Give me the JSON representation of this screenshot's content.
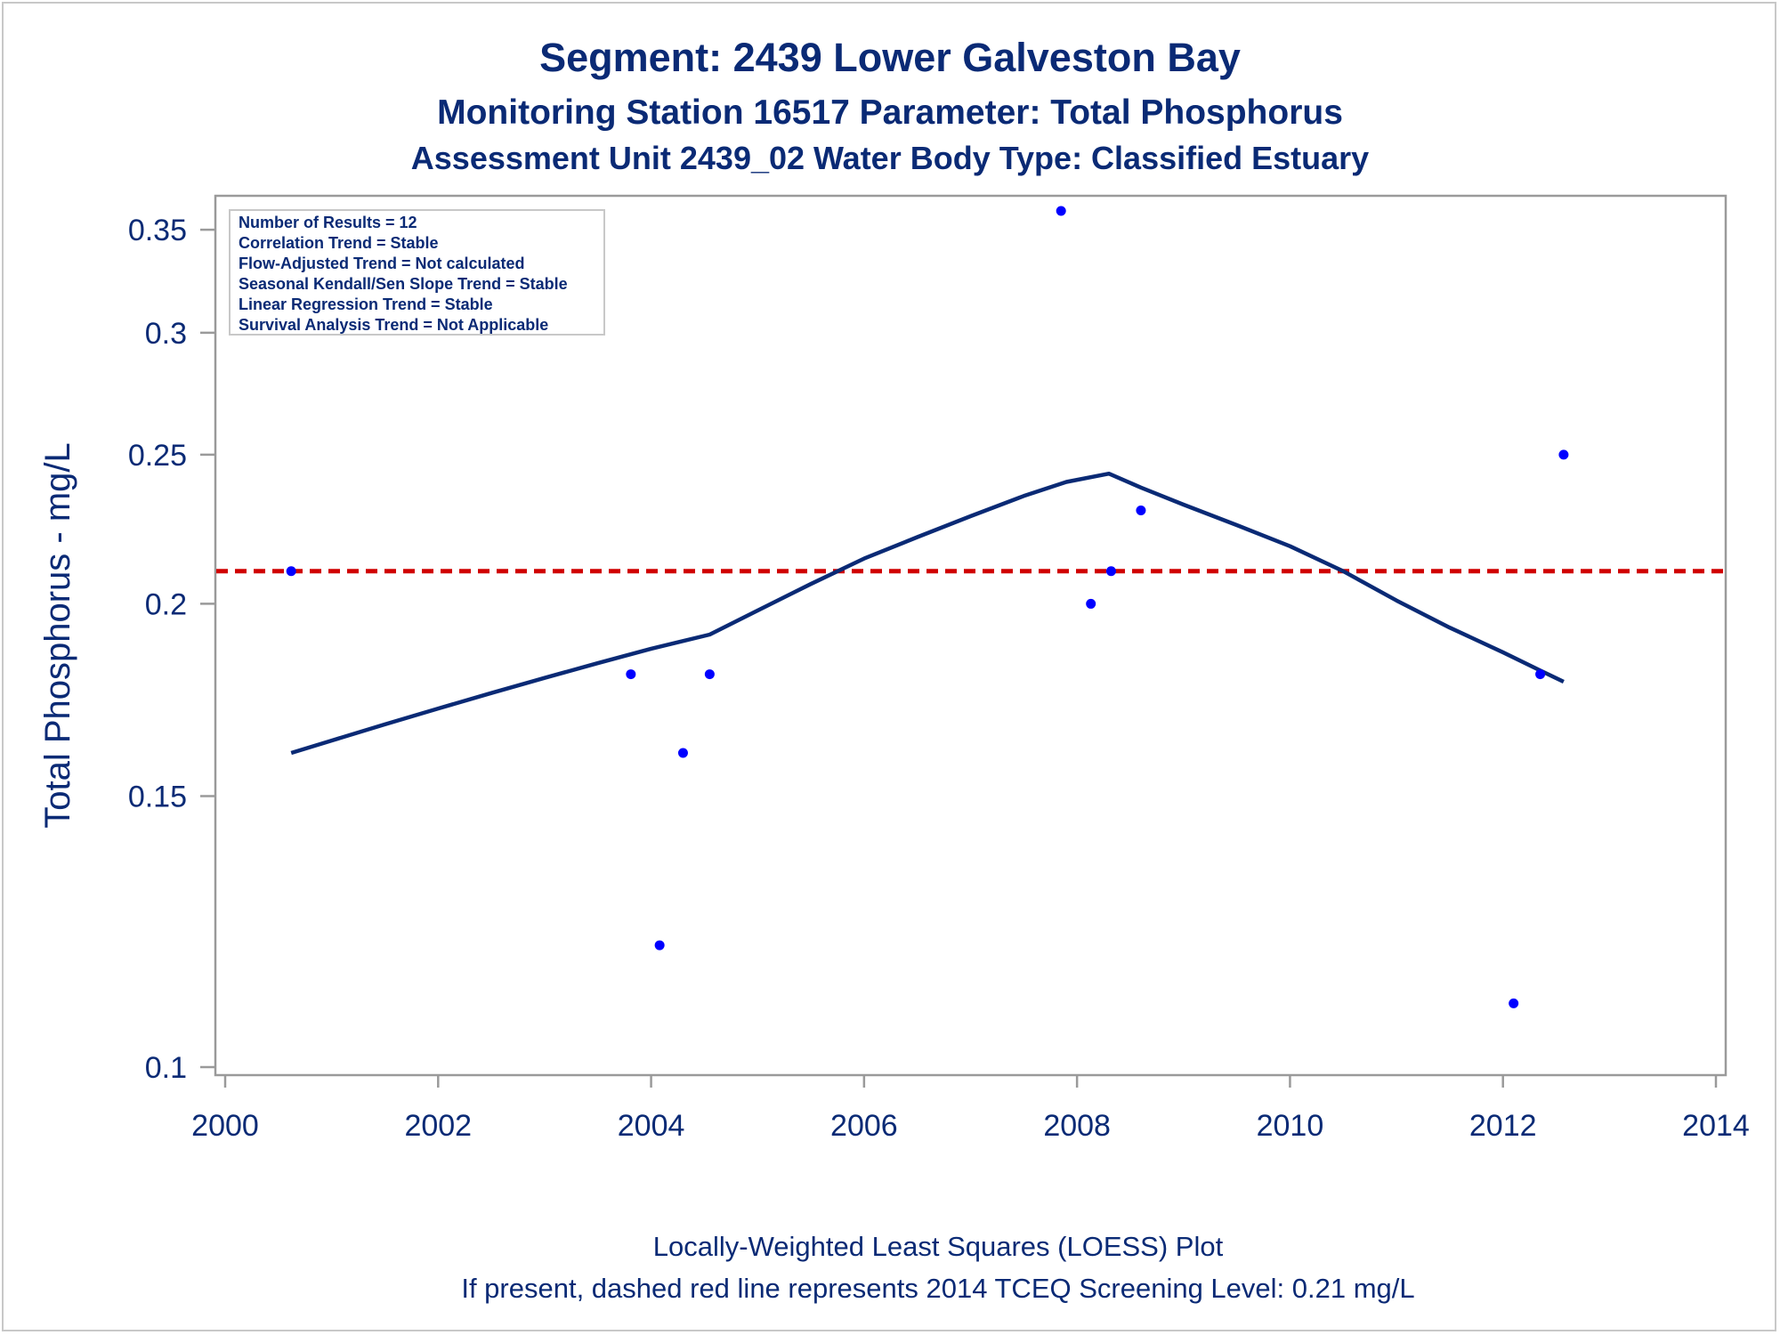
{
  "titles": {
    "line1": "Segment: 2439  Lower Galveston Bay",
    "line2": "Monitoring Station 16517 Parameter: Total Phosphorus",
    "line3": "Assessment Unit 2439_02   Water Body Type: Classified Estuary"
  },
  "footer": {
    "line1": "Locally-Weighted Least Squares (LOESS) Plot",
    "line2": "If present, dashed red line represents 2014 TCEQ Screening Level: 0.21 mg/L"
  },
  "stats_box": [
    "Number of Results = 12",
    "Correlation Trend = Stable",
    "Flow-Adjusted Trend = Not calculated",
    "Seasonal Kendall/Sen Slope Trend = Stable",
    "Linear Regression Trend = Stable",
    "Survival Analysis Trend = Not Applicable"
  ],
  "colors": {
    "text": "#0a2a75",
    "points": "#0000ff",
    "loess": "#0a2a75",
    "screening": "#d00000",
    "axis": "#9a9a9a"
  },
  "chart_data": {
    "type": "scatter",
    "ylabel": "Total Phosphorus - mg/L",
    "xlabel": "",
    "y_scale": "log",
    "xlim": [
      2000,
      2014
    ],
    "ylim": [
      0.1,
      0.36
    ],
    "x_ticks": [
      2000,
      2002,
      2004,
      2006,
      2008,
      2010,
      2012,
      2014
    ],
    "x_tick_labels": [
      "2000",
      "2002",
      "2004",
      "2006",
      "2008",
      "2010",
      "2012",
      "2014"
    ],
    "y_ticks": [
      0.1,
      0.15,
      0.2,
      0.25,
      0.3,
      0.35
    ],
    "y_tick_labels": [
      "0.1",
      "0.15",
      "0.2",
      "0.25",
      "0.3",
      "0.35"
    ],
    "points": [
      {
        "x": 2000.62,
        "y": 0.21
      },
      {
        "x": 2003.81,
        "y": 0.18
      },
      {
        "x": 2004.08,
        "y": 0.12
      },
      {
        "x": 2004.3,
        "y": 0.16
      },
      {
        "x": 2004.55,
        "y": 0.18
      },
      {
        "x": 2007.85,
        "y": 0.36
      },
      {
        "x": 2008.13,
        "y": 0.2
      },
      {
        "x": 2008.32,
        "y": 0.21
      },
      {
        "x": 2008.6,
        "y": 0.23
      },
      {
        "x": 2012.1,
        "y": 0.11
      },
      {
        "x": 2012.35,
        "y": 0.18
      },
      {
        "x": 2012.57,
        "y": 0.25
      }
    ],
    "loess": [
      {
        "x": 2000.62,
        "y": 0.16
      },
      {
        "x": 2001.0,
        "y": 0.163
      },
      {
        "x": 2001.5,
        "y": 0.167
      },
      {
        "x": 2002.0,
        "y": 0.171
      },
      {
        "x": 2002.5,
        "y": 0.175
      },
      {
        "x": 2003.0,
        "y": 0.179
      },
      {
        "x": 2003.5,
        "y": 0.183
      },
      {
        "x": 2004.0,
        "y": 0.187
      },
      {
        "x": 2004.55,
        "y": 0.191
      },
      {
        "x": 2005.0,
        "y": 0.198
      },
      {
        "x": 2005.5,
        "y": 0.206
      },
      {
        "x": 2006.0,
        "y": 0.214
      },
      {
        "x": 2006.5,
        "y": 0.221
      },
      {
        "x": 2007.0,
        "y": 0.228
      },
      {
        "x": 2007.5,
        "y": 0.235
      },
      {
        "x": 2007.9,
        "y": 0.24
      },
      {
        "x": 2008.3,
        "y": 0.243
      },
      {
        "x": 2008.6,
        "y": 0.238
      },
      {
        "x": 2009.0,
        "y": 0.232
      },
      {
        "x": 2009.5,
        "y": 0.225
      },
      {
        "x": 2010.0,
        "y": 0.218
      },
      {
        "x": 2010.5,
        "y": 0.21
      },
      {
        "x": 2011.0,
        "y": 0.201
      },
      {
        "x": 2011.5,
        "y": 0.193
      },
      {
        "x": 2012.0,
        "y": 0.186
      },
      {
        "x": 2012.35,
        "y": 0.181
      },
      {
        "x": 2012.57,
        "y": 0.178
      }
    ],
    "screening_level": 0.21,
    "grid": false,
    "legend": "none",
    "annotation_box_placement": "top-left"
  }
}
